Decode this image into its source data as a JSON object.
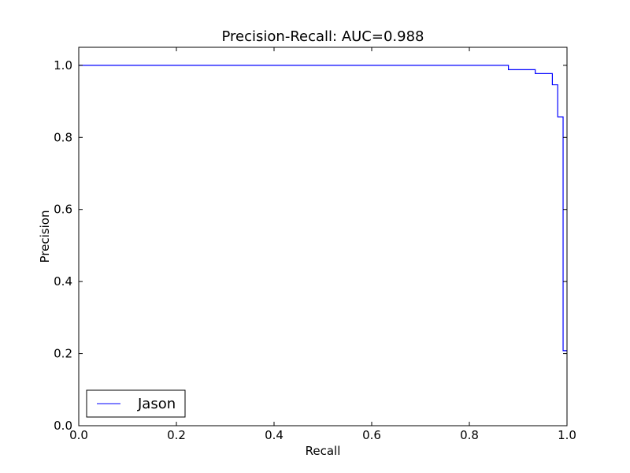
{
  "chart_data": {
    "type": "line",
    "title": "Precision-Recall: AUC=0.988",
    "xlabel": "Recall",
    "ylabel": "Precision",
    "xlim": [
      0.0,
      1.0
    ],
    "ylim": [
      0.0,
      1.05
    ],
    "xticks": [
      0.0,
      0.2,
      0.4,
      0.6,
      0.8,
      1.0
    ],
    "xtick_labels": [
      "0.0",
      "0.2",
      "0.4",
      "0.6",
      "0.8",
      "1.0"
    ],
    "yticks": [
      0.0,
      0.2,
      0.4,
      0.6,
      0.8,
      1.0
    ],
    "ytick_labels": [
      "0.0",
      "0.2",
      "0.4",
      "0.6",
      "0.8",
      "1.0"
    ],
    "grid": false,
    "legend_position": "lower-left",
    "series": [
      {
        "name": "Jason",
        "color": "#0000ff",
        "step": true,
        "x": [
          0.0,
          0.88,
          0.88,
          0.935,
          0.935,
          0.97,
          0.97,
          0.981,
          0.981,
          0.992,
          0.992,
          1.0
        ],
        "y": [
          1.0,
          1.0,
          0.988,
          0.988,
          0.977,
          0.977,
          0.946,
          0.946,
          0.857,
          0.857,
          0.208,
          0.208
        ]
      }
    ]
  }
}
